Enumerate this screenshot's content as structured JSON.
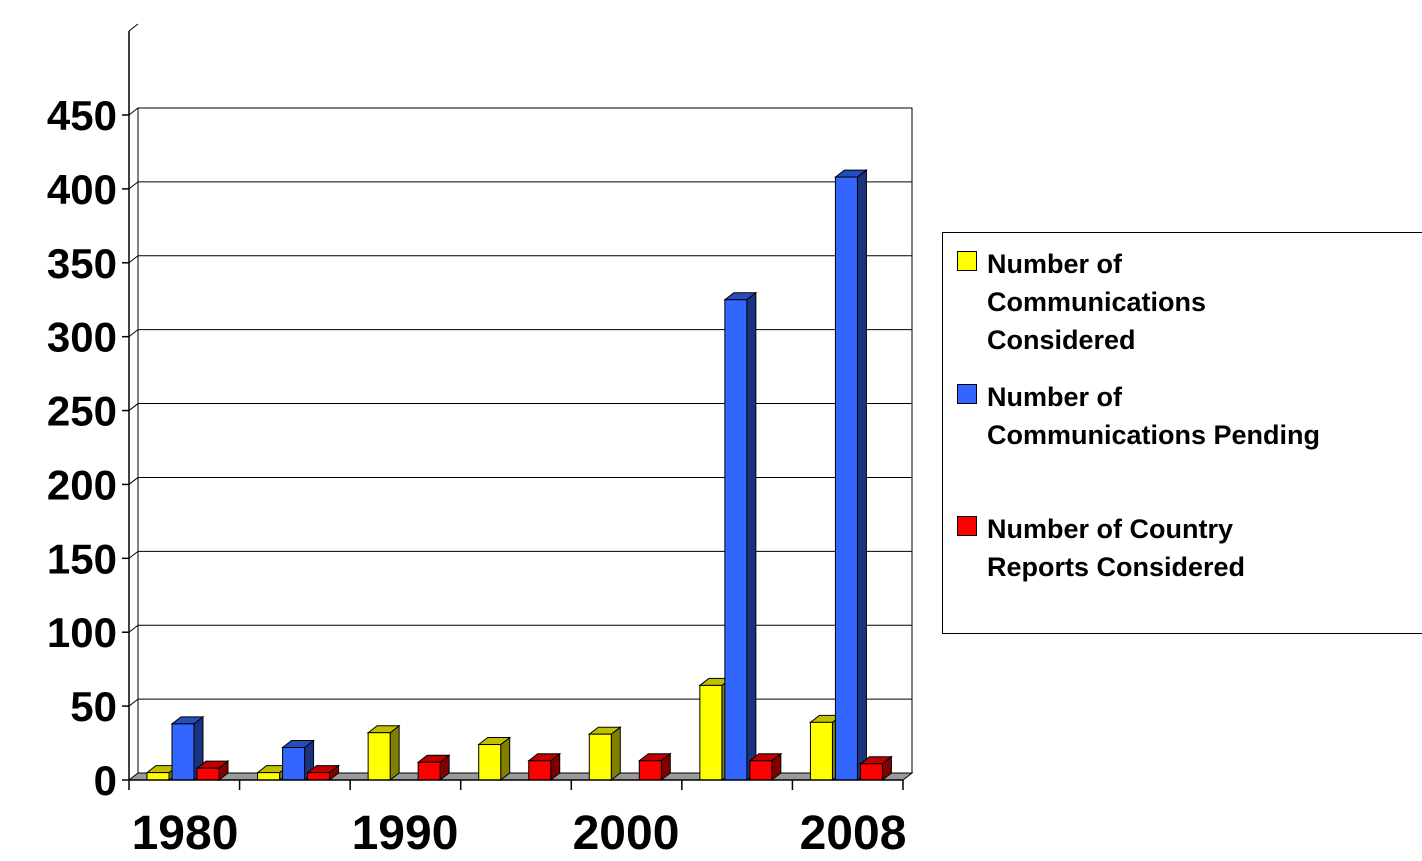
{
  "chart_data": {
    "type": "bar",
    "title": "",
    "xlabel": "",
    "ylabel": "",
    "ylim": [
      0,
      450
    ],
    "yticks": [
      "0",
      "50",
      "100",
      "150",
      "200",
      "250",
      "300",
      "350",
      "400",
      "450"
    ],
    "xtick_labels": [
      "1980",
      "1990",
      "2000",
      "2008"
    ],
    "categories": [
      "1980",
      "",
      "1990",
      "",
      "2000",
      "",
      "2008"
    ],
    "series": [
      {
        "name": "Number of Communications Considered",
        "color": "#ffff00",
        "values": [
          5,
          5,
          32,
          24,
          31,
          64,
          39
        ]
      },
      {
        "name": "Number of Communications Pending",
        "color": "#3366ff",
        "values": [
          38,
          22,
          null,
          null,
          null,
          325,
          408
        ]
      },
      {
        "name": "Number of Country Reports Considered",
        "color": "#ff0000",
        "values": [
          8,
          5,
          12,
          13,
          13,
          13,
          11
        ]
      }
    ],
    "grid": true,
    "legend_position": "right",
    "style": "3d-bar"
  },
  "legend": {
    "items": [
      {
        "label_lines": [
          "Number of",
          "Communications",
          "Considered"
        ]
      },
      {
        "label_lines": [
          "Number of",
          "Communications Pending"
        ]
      },
      {
        "label_lines": [
          "Number of Country",
          "Reports Considered"
        ]
      }
    ]
  }
}
